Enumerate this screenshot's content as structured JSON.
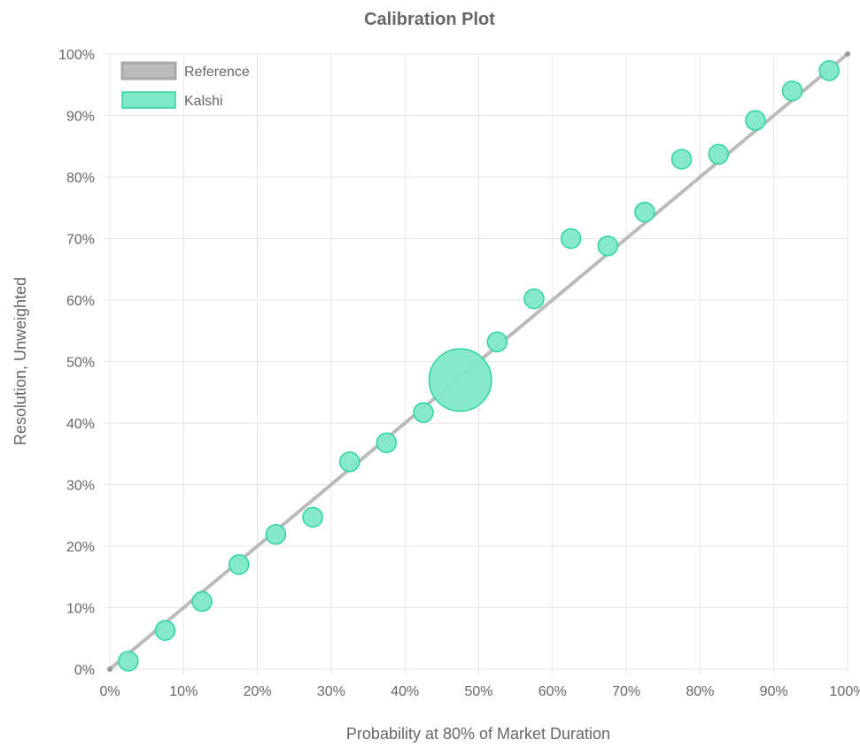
{
  "chart_data": {
    "type": "scatter",
    "title": "Calibration Plot",
    "xlabel": "Probability at 80% of Market Duration",
    "ylabel": "Resolution, Unweighted",
    "xlim": [
      0,
      100
    ],
    "ylim": [
      0,
      100
    ],
    "x_ticks": [
      "0%",
      "10%",
      "20%",
      "30%",
      "40%",
      "50%",
      "60%",
      "70%",
      "80%",
      "90%",
      "100%"
    ],
    "y_ticks": [
      "0%",
      "10%",
      "20%",
      "30%",
      "40%",
      "50%",
      "60%",
      "70%",
      "80%",
      "90%",
      "100%"
    ],
    "grid": true,
    "legend": "top-left",
    "series": [
      {
        "name": "Reference",
        "kind": "line",
        "color": "#bbbbbb",
        "x": [
          0,
          100
        ],
        "y": [
          0,
          100
        ]
      },
      {
        "name": "Kalshi",
        "kind": "bubble",
        "fill": "#7fe8c9",
        "stroke": "#2fd4a3",
        "x": [
          2.5,
          7.5,
          12.5,
          17.5,
          22.5,
          27.5,
          32.5,
          37.5,
          42.5,
          47.5,
          52.5,
          57.5,
          62.5,
          67.5,
          72.5,
          77.5,
          82.5,
          87.5,
          92.5,
          97.5
        ],
        "y": [
          1.3,
          6.3,
          11.0,
          17.0,
          21.9,
          24.7,
          33.7,
          36.8,
          41.7,
          47.0,
          53.2,
          60.2,
          70.0,
          68.8,
          74.3,
          82.9,
          83.7,
          89.2,
          94.0,
          97.3
        ],
        "size": [
          1,
          1,
          1,
          1,
          1,
          1,
          1,
          1,
          1,
          3.2,
          1,
          1,
          1,
          1,
          1,
          1,
          1,
          1,
          1,
          1
        ]
      }
    ]
  }
}
